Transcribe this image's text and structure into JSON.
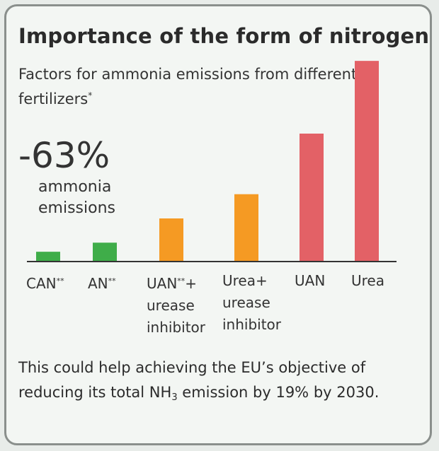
{
  "title": "Importance of the form of nitrogen",
  "subtitle": "Factors for ammonia emissions from different fertilizers",
  "subtitle_mark": "*",
  "callout": {
    "value": "-63%",
    "text": "ammonia emissions"
  },
  "footer": {
    "before": "This could help achieving the EU’s objective of reducing its total NH",
    "sub": "3",
    "after": " emission by 19% by 2030."
  },
  "colors": {
    "green": "#3fad49",
    "orange": "#f59a23",
    "red": "#e36166",
    "axis": "#333333"
  },
  "chart_data": {
    "type": "bar",
    "title": "Importance of the form of nitrogen",
    "subtitle": "Factors for ammonia emissions from different fertilizers*",
    "categories": [
      "CAN**",
      "AN**",
      "UAN**+ urease inhibitor",
      "Urea+ urease inhibitor",
      "UAN",
      "Urea"
    ],
    "values": [
      0.015,
      0.03,
      0.07,
      0.11,
      0.21,
      0.33
    ],
    "colors": [
      "#3fad49",
      "#3fad49",
      "#f59a23",
      "#f59a23",
      "#e36166",
      "#e36166"
    ],
    "ylim": [
      0,
      0.35
    ],
    "grid": false,
    "annotations": [
      "-63% ammonia emissions"
    ]
  },
  "labels": [
    {
      "lines": [
        "CAN"
      ],
      "mark": "**"
    },
    {
      "lines": [
        "AN"
      ],
      "mark": "**"
    },
    {
      "lines": [
        "UAN",
        "urease",
        "inhibitor"
      ],
      "mark": "**",
      "suffix": "+"
    },
    {
      "lines": [
        "Urea+",
        "urease",
        "inhibitor"
      ],
      "mark": ""
    },
    {
      "lines": [
        "UAN"
      ],
      "mark": ""
    },
    {
      "lines": [
        "Urea"
      ],
      "mark": ""
    }
  ]
}
